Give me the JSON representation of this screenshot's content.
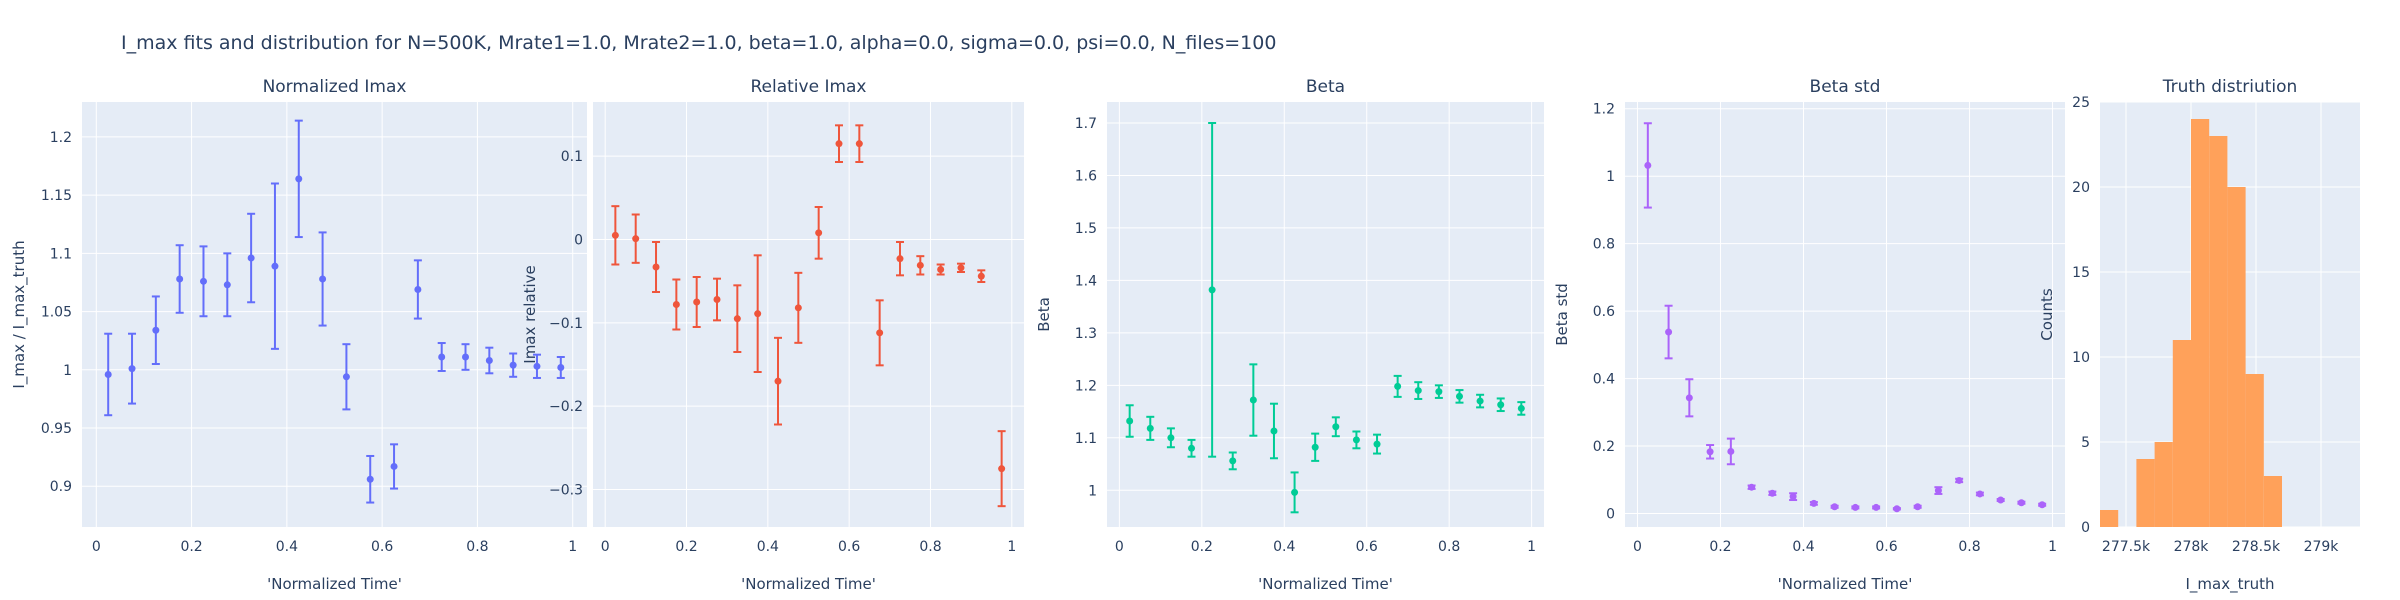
{
  "title": "I_max fits and distribution for N=500K, Mrate1=1.0, Mrate2=1.0, beta=1.0, alpha=0.0, sigma=0.0,  psi=0.0, N_files=100",
  "colors": {
    "plot_bg": "#E5ECF6",
    "grid": "#FFFFFF",
    "text": "#2a3f5f",
    "series1": "#636EFA",
    "series2": "#EF553B",
    "series3": "#00CC96",
    "series4": "#AB63FA",
    "hist": "#FFA15A"
  },
  "chart_data": [
    {
      "type": "scatter",
      "title": "Normalized Imax",
      "xlabel": "'Normalized Time'",
      "ylabel": "I_max / I_max_truth",
      "xlim": [
        -0.03,
        1.03
      ],
      "ylim": [
        0.865,
        1.23
      ],
      "grid": true,
      "xticks": [
        0,
        0.2,
        0.4,
        0.6,
        0.8,
        1
      ],
      "xtick_labels": [
        "0",
        "0.2",
        "0.4",
        "0.6",
        "0.8",
        "1"
      ],
      "yticks": [
        0.9,
        0.95,
        1,
        1.05,
        1.1,
        1.15,
        1.2
      ],
      "ytick_labels": [
        "0.9",
        "0.95",
        "1",
        "1.05",
        "1.1",
        "1.15",
        "1.2"
      ],
      "color": "#636EFA",
      "x": [
        0.025,
        0.075,
        0.125,
        0.175,
        0.225,
        0.275,
        0.325,
        0.375,
        0.425,
        0.475,
        0.525,
        0.575,
        0.625,
        0.675,
        0.725,
        0.775,
        0.825,
        0.875,
        0.925,
        0.975
      ],
      "y": [
        0.996,
        1.001,
        1.034,
        1.078,
        1.076,
        1.073,
        1.096,
        1.089,
        1.164,
        1.078,
        0.994,
        0.906,
        0.917,
        1.069,
        1.011,
        1.011,
        1.008,
        1.004,
        1.003,
        1.002
      ],
      "err": [
        0.035,
        0.03,
        0.029,
        0.029,
        0.03,
        0.027,
        0.038,
        0.071,
        0.05,
        0.04,
        0.028,
        0.02,
        0.019,
        0.025,
        0.012,
        0.011,
        0.011,
        0.01,
        0.01,
        0.009
      ]
    },
    {
      "type": "scatter",
      "title": "Relative Imax",
      "xlabel": "'Normalized Time'",
      "ylabel": "Imax relative",
      "xlim": [
        -0.03,
        1.03
      ],
      "ylim": [
        -0.345,
        0.165
      ],
      "grid": true,
      "xticks": [
        0,
        0.2,
        0.4,
        0.6,
        0.8,
        1
      ],
      "xtick_labels": [
        "0",
        "0.2",
        "0.4",
        "0.6",
        "0.8",
        "1"
      ],
      "yticks": [
        -0.3,
        -0.2,
        -0.1,
        0,
        0.1
      ],
      "ytick_labels": [
        "−0.3",
        "−0.2",
        "−0.1",
        "0",
        "0.1"
      ],
      "color": "#EF553B",
      "x": [
        0.025,
        0.075,
        0.125,
        0.175,
        0.225,
        0.275,
        0.325,
        0.375,
        0.425,
        0.475,
        0.525,
        0.575,
        0.625,
        0.675,
        0.725,
        0.775,
        0.825,
        0.875,
        0.925,
        0.975
      ],
      "y": [
        0.005,
        0.001,
        -0.033,
        -0.078,
        -0.075,
        -0.072,
        -0.095,
        -0.089,
        -0.17,
        -0.082,
        0.008,
        0.115,
        0.115,
        -0.112,
        -0.023,
        -0.031,
        -0.036,
        -0.034,
        -0.044,
        -0.275
      ],
      "err": [
        0.035,
        0.029,
        0.03,
        0.03,
        0.03,
        0.025,
        0.04,
        0.07,
        0.052,
        0.042,
        0.031,
        0.022,
        0.022,
        0.039,
        0.02,
        0.011,
        0.006,
        0.005,
        0.007,
        0.045
      ]
    },
    {
      "type": "scatter",
      "title": "Beta",
      "xlabel": "'Normalized Time'",
      "ylabel": "Beta",
      "xlim": [
        -0.03,
        1.03
      ],
      "ylim": [
        0.93,
        1.74
      ],
      "grid": true,
      "xticks": [
        0,
        0.2,
        0.4,
        0.6,
        0.8,
        1
      ],
      "xtick_labels": [
        "0",
        "0.2",
        "0.4",
        "0.6",
        "0.8",
        "1"
      ],
      "yticks": [
        1,
        1.1,
        1.2,
        1.3,
        1.4,
        1.5,
        1.6,
        1.7
      ],
      "ytick_labels": [
        "1",
        "1.1",
        "1.2",
        "1.3",
        "1.4",
        "1.5",
        "1.6",
        "1.7"
      ],
      "color": "#00CC96",
      "x": [
        0.025,
        0.075,
        0.125,
        0.175,
        0.225,
        0.275,
        0.325,
        0.375,
        0.425,
        0.475,
        0.525,
        0.575,
        0.625,
        0.675,
        0.725,
        0.775,
        0.825,
        0.875,
        0.925,
        0.975
      ],
      "y": [
        1.132,
        1.118,
        1.1,
        1.08,
        1.382,
        1.056,
        1.172,
        1.113,
        0.996,
        1.082,
        1.121,
        1.096,
        1.088,
        1.198,
        1.19,
        1.188,
        1.179,
        1.17,
        1.163,
        1.156
      ],
      "err": [
        0.03,
        0.022,
        0.018,
        0.016,
        0.318,
        0.016,
        0.068,
        0.052,
        0.038,
        0.026,
        0.018,
        0.016,
        0.018,
        0.02,
        0.016,
        0.012,
        0.012,
        0.012,
        0.012,
        0.012
      ]
    },
    {
      "type": "scatter",
      "title": "Beta std",
      "xlabel": "'Normalized Time'",
      "ylabel": "Beta std",
      "xlim": [
        -0.03,
        1.03
      ],
      "ylim": [
        -0.04,
        1.22
      ],
      "grid": true,
      "xticks": [
        0,
        0.2,
        0.4,
        0.6,
        0.8,
        1
      ],
      "xtick_labels": [
        "0",
        "0.2",
        "0.4",
        "0.6",
        "0.8",
        "1"
      ],
      "yticks": [
        0,
        0.2,
        0.4,
        0.6,
        0.8,
        1,
        1.2
      ],
      "ytick_labels": [
        "0",
        "0.2",
        "0.4",
        "0.6",
        "0.8",
        "1",
        "1.2"
      ],
      "color": "#AB63FA",
      "x": [
        0.025,
        0.075,
        0.125,
        0.175,
        0.225,
        0.275,
        0.325,
        0.375,
        0.425,
        0.475,
        0.525,
        0.575,
        0.625,
        0.675,
        0.725,
        0.775,
        0.825,
        0.875,
        0.925,
        0.975
      ],
      "y": [
        1.032,
        0.538,
        0.343,
        0.183,
        0.184,
        0.078,
        0.06,
        0.05,
        0.03,
        0.02,
        0.018,
        0.018,
        0.014,
        0.02,
        0.068,
        0.098,
        0.058,
        0.04,
        0.032,
        0.026
      ],
      "err": [
        0.125,
        0.078,
        0.055,
        0.02,
        0.038,
        0.005,
        0.005,
        0.01,
        0.004,
        0.003,
        0.003,
        0.003,
        0.002,
        0.003,
        0.01,
        0.005,
        0.004,
        0.003,
        0.003,
        0.003
      ]
    },
    {
      "type": "histogram",
      "title": "Truth distriution",
      "xlabel": "I_max_truth",
      "ylabel": "Counts",
      "xlim": [
        277.3,
        279.3
      ],
      "ylim": [
        0,
        25
      ],
      "grid": true,
      "xticks": [
        277.5,
        278,
        278.5,
        279
      ],
      "xtick_labels": [
        "277.5k",
        "278k",
        "278.5k",
        "279k"
      ],
      "yticks": [
        0,
        5,
        10,
        15,
        20,
        25
      ],
      "ytick_labels": [
        "0",
        "5",
        "10",
        "15",
        "20",
        "25"
      ],
      "color": "#FFA15A",
      "bin_start": 277.3,
      "bin_width": 0.14,
      "counts": [
        1,
        0,
        4,
        5,
        11,
        24,
        23,
        20,
        9,
        3
      ]
    }
  ]
}
